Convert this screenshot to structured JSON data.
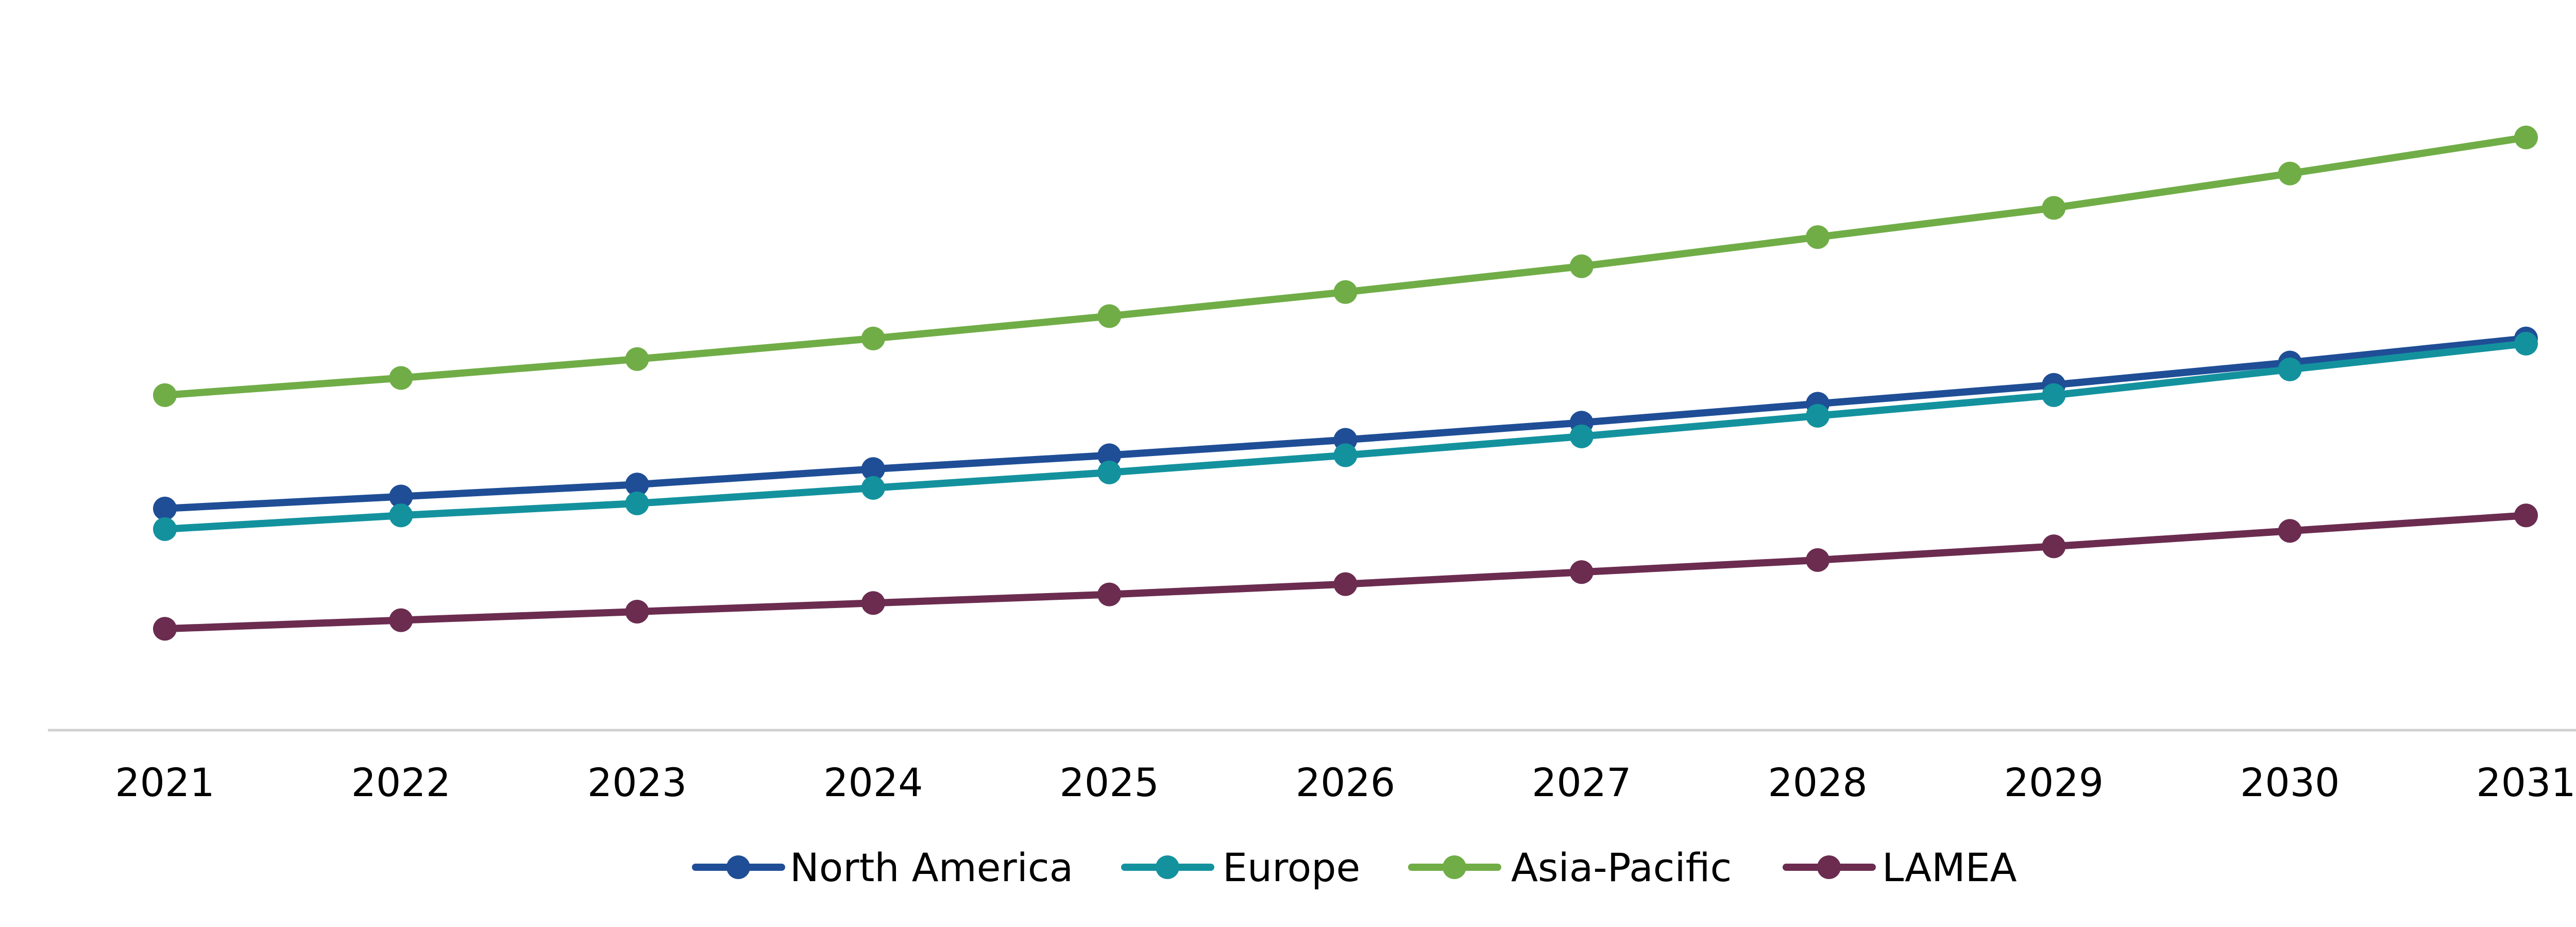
{
  "chart_data": {
    "type": "line",
    "title": "",
    "xlabel": "",
    "ylabel": "",
    "categories": [
      "2021",
      "2022",
      "2023",
      "2024",
      "2025",
      "2026",
      "2027",
      "2028",
      "2029",
      "2030",
      "2031"
    ],
    "ylim": [
      0,
      425
    ],
    "y_axis_visible": false,
    "grid": false,
    "legend_placement": "bottom",
    "series": [
      {
        "name": "North America",
        "color": "#1f4e96",
        "values": [
          129,
          136,
          143,
          152,
          160,
          169,
          179,
          190,
          201,
          214,
          228
        ]
      },
      {
        "name": "Europe",
        "color": "#13929e",
        "values": [
          117,
          125,
          132,
          141,
          150,
          160,
          171,
          183,
          195,
          210,
          225
        ]
      },
      {
        "name": "Asia-Pacific",
        "color": "#70ad47",
        "values": [
          195,
          205,
          216,
          228,
          241,
          255,
          270,
          287,
          304,
          324,
          345
        ]
      },
      {
        "name": "LAMEA",
        "color": "#6b2c50",
        "values": [
          59,
          64,
          69,
          74,
          79,
          85,
          92,
          99,
          107,
          116,
          125
        ]
      }
    ]
  }
}
